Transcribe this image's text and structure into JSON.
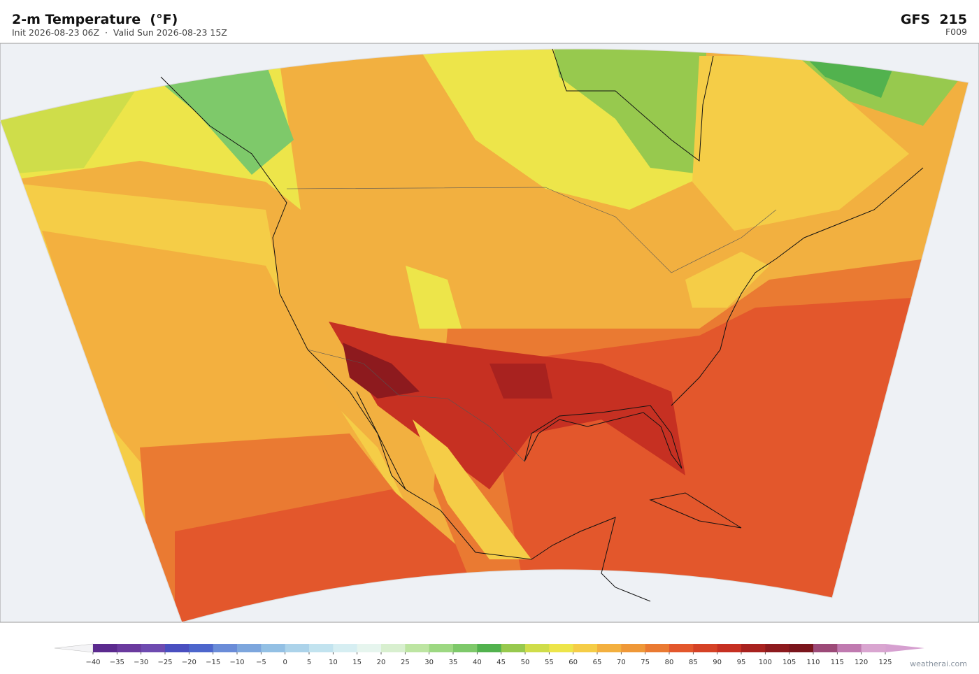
{
  "header": {
    "title": "2-m Temperature  (°F)",
    "subtitle": "Init 2026-08-23 06Z  ·  Valid Sun 2026-08-23 15Z",
    "model": "GFS  215",
    "forecast_hour": "F009"
  },
  "colorbar": {
    "ticks": [
      {
        "value": -40,
        "label": "−40"
      },
      {
        "value": -35,
        "label": "−35"
      },
      {
        "value": -30,
        "label": "−30"
      },
      {
        "value": -25,
        "label": "−25"
      },
      {
        "value": -20,
        "label": "−20"
      },
      {
        "value": -15,
        "label": "−15"
      },
      {
        "value": -10,
        "label": "−10"
      },
      {
        "value": -5,
        "label": "−5"
      },
      0,
      5,
      10,
      15,
      20,
      25,
      30,
      35,
      40,
      45,
      50,
      55,
      60,
      65,
      70,
      75,
      80,
      85,
      90,
      95,
      100,
      105,
      110,
      115,
      120,
      125
    ],
    "colors": [
      "#5b2a8e",
      "#6a3a9e",
      "#6e4bb0",
      "#4a4fc0",
      "#4d66cc",
      "#6a8cd8",
      "#7da6dd",
      "#93c0e4",
      "#acd3ea",
      "#c2e3ef",
      "#d6eef2",
      "#e6f5ee",
      "#d8efcf",
      "#bde5a2",
      "#9dd882",
      "#7ec96a",
      "#52b24e",
      "#97c94e",
      "#cfdd4a",
      "#ede54a",
      "#f5cd47",
      "#f3b03f",
      "#ef9838",
      "#ea7a32",
      "#e3572c",
      "#d54226",
      "#c63022",
      "#a8221f",
      "#8d1a1e",
      "#7a151c",
      "#9c4a78",
      "#c07ab0",
      "#d9a5d0"
    ],
    "under_color": "#f4f4f6",
    "over_color": "#d6a0d0"
  },
  "credit": "weatherai.com"
}
